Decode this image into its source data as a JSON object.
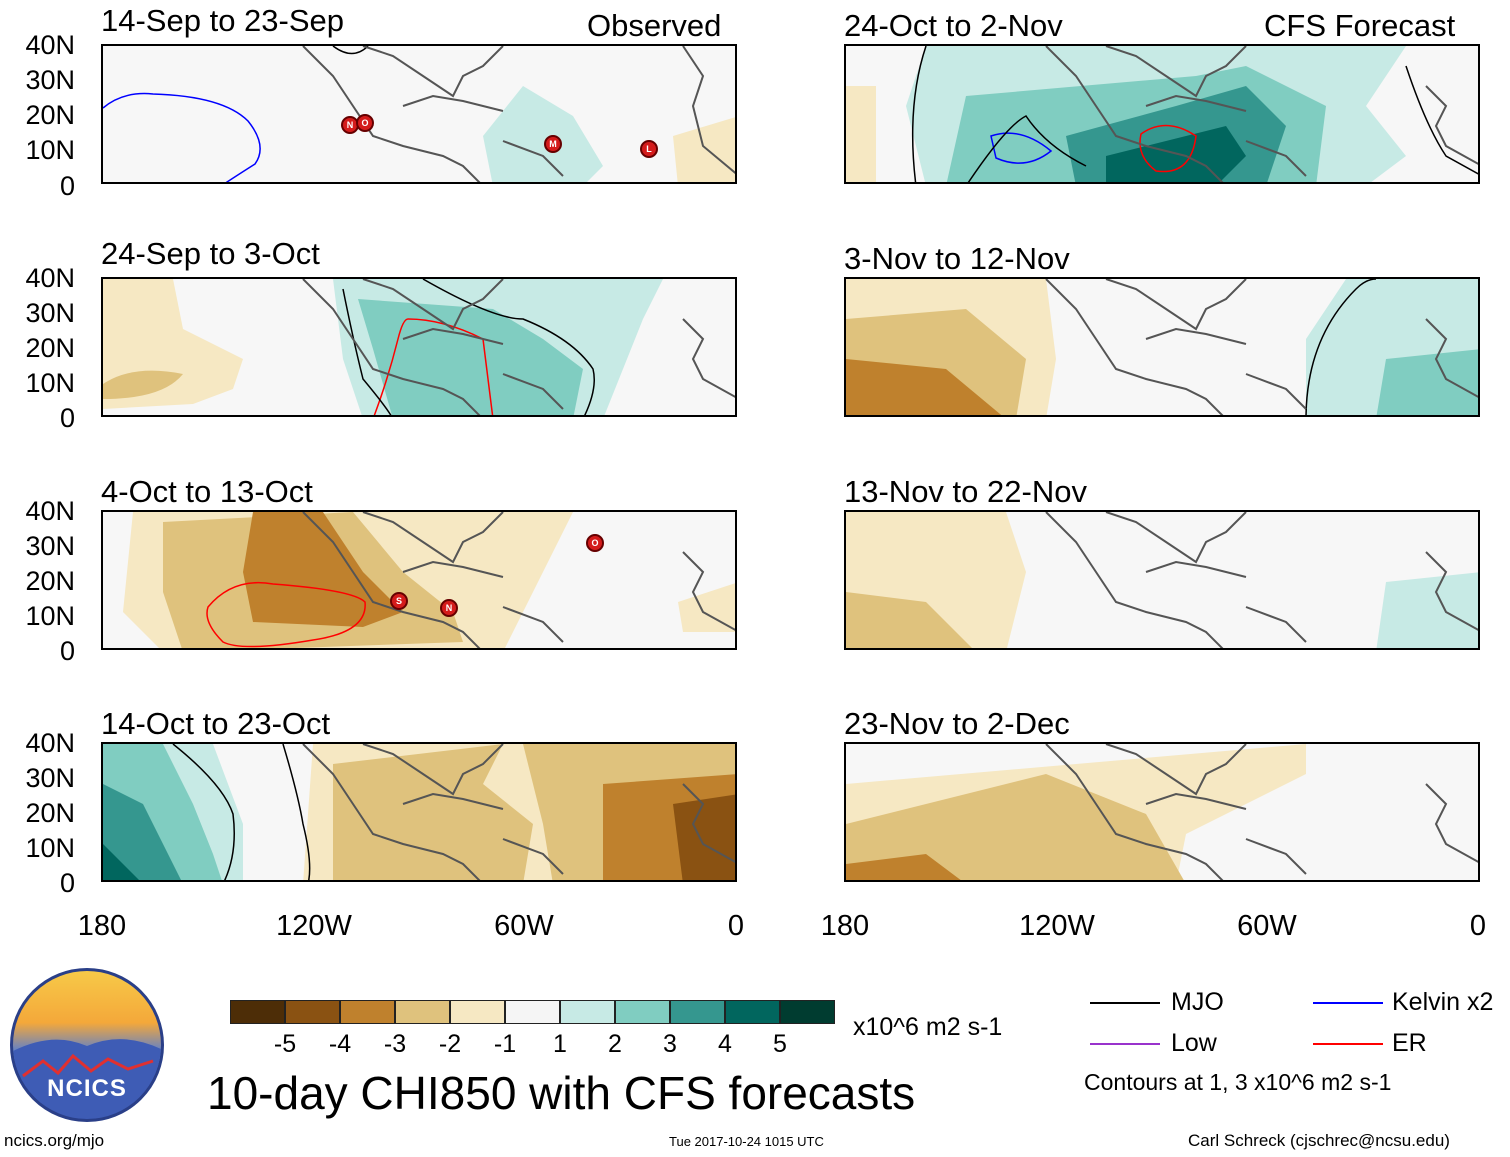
{
  "headers": {
    "left": "Observed",
    "right": "CFS Forecast"
  },
  "panels": [
    {
      "id": "p1",
      "title": "14-Sep to 23-Sep"
    },
    {
      "id": "p2",
      "title": "24-Sep to 3-Oct"
    },
    {
      "id": "p3",
      "title": "4-Oct to 13-Oct"
    },
    {
      "id": "p4",
      "title": "14-Oct to 23-Oct"
    },
    {
      "id": "p5",
      "title": "24-Oct to 2-Nov"
    },
    {
      "id": "p6",
      "title": "3-Nov to 12-Nov"
    },
    {
      "id": "p7",
      "title": "13-Nov to 22-Nov"
    },
    {
      "id": "p8",
      "title": "23-Nov to 2-Dec"
    }
  ],
  "y_ticks": [
    "40N",
    "30N",
    "20N",
    "10N",
    "0"
  ],
  "x_ticks": [
    "180",
    "120W",
    "60W",
    "0"
  ],
  "colorbar": {
    "colors": [
      "#4d2d07",
      "#8a5212",
      "#bf812d",
      "#dfc27d",
      "#f6e8c3",
      "#f5f5f5",
      "#c7eae5",
      "#80cdc1",
      "#35978f",
      "#01665e",
      "#003c30"
    ],
    "labels": [
      "-5",
      "-4",
      "-3",
      "-2",
      "-1",
      "1",
      "2",
      "3",
      "4",
      "5"
    ],
    "units": "x10^6 m2 s-1"
  },
  "legend": {
    "items": [
      {
        "label": "MJO",
        "color": "#000000"
      },
      {
        "label": "Kelvin x2",
        "color": "#0000ff"
      },
      {
        "label": "Low",
        "color": "#9933cc"
      },
      {
        "label": "ER",
        "color": "#ff0000"
      }
    ],
    "contours_note": "Contours at 1, 3 x10^6 m2 s-1"
  },
  "title": "10-day CHI850 with CFS forecasts",
  "footer": {
    "site": "ncics.org/mjo",
    "timestamp": "Tue 2017-10-24 1015 UTC",
    "author": "Carl Schreck (cjschrec@ncsu.edu)"
  },
  "logo": {
    "text": "NCICS"
  },
  "storm_markers": [
    {
      "panel": "p1",
      "letter": "N"
    },
    {
      "panel": "p1",
      "letter": "O"
    },
    {
      "panel": "p1",
      "letter": "M"
    },
    {
      "panel": "p1",
      "letter": "L"
    },
    {
      "panel": "p3",
      "letter": "O"
    },
    {
      "panel": "p3",
      "letter": "S"
    },
    {
      "panel": "p3",
      "letter": "N"
    }
  ]
}
